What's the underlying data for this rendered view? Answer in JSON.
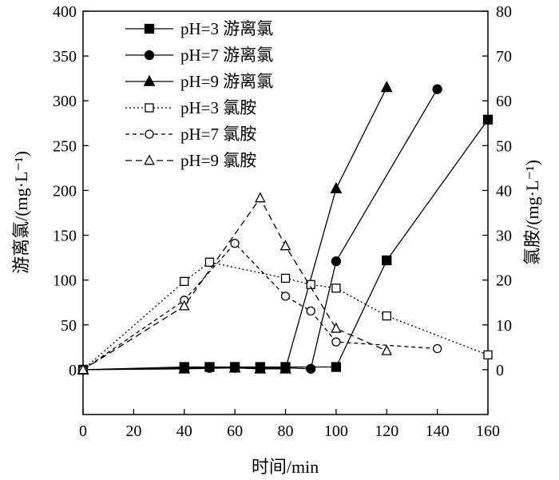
{
  "chart_data": {
    "type": "line",
    "x": [
      0,
      20,
      40,
      60,
      80,
      100,
      120,
      140,
      160
    ],
    "xlabel": "时间/min",
    "ylabel_left": "游离氯/(mg·L⁻¹)",
    "ylabel_right": "氯胺/(mg·L⁻¹)",
    "xlim": [
      0,
      160
    ],
    "ylim_left": [
      -50,
      400
    ],
    "ylim_right": [
      -10,
      80
    ],
    "xticks": [
      "0",
      "20",
      "40",
      "60",
      "80",
      "100",
      "120",
      "140",
      "160"
    ],
    "yticks_left": [
      "0",
      "50",
      "100",
      "150",
      "200",
      "250",
      "300",
      "350",
      "400"
    ],
    "yticks_right": [
      "0",
      "10",
      "20",
      "30",
      "40",
      "50",
      "60",
      "70",
      "80"
    ],
    "grid": false,
    "legend_position": "top-center",
    "series": [
      {
        "name": "pH=3 游离氯",
        "axis": "left",
        "line": "solid",
        "marker": "square",
        "filled": true,
        "x": [
          0,
          40,
          50,
          60,
          70,
          80,
          100,
          120,
          160
        ],
        "y": [
          0,
          3,
          3,
          3,
          3,
          3,
          3,
          122,
          279
        ]
      },
      {
        "name": "pH=7 游离氯",
        "axis": "left",
        "line": "solid",
        "marker": "circle",
        "filled": true,
        "x": [
          0,
          40,
          50,
          60,
          70,
          80,
          90,
          100,
          140
        ],
        "y": [
          0,
          2,
          2,
          2,
          2,
          2,
          1,
          121,
          313
        ]
      },
      {
        "name": "pH=9 游离氯",
        "axis": "left",
        "line": "solid",
        "marker": "triangle",
        "filled": true,
        "x": [
          0,
          40,
          60,
          70,
          80,
          100,
          120
        ],
        "y": [
          0,
          1,
          2,
          1,
          1,
          202,
          315
        ]
      },
      {
        "name": "pH=3 氯胺",
        "axis": "right",
        "line": "dotted",
        "marker": "square",
        "filled": false,
        "x": [
          0,
          40,
          50,
          80,
          90,
          100,
          120,
          160
        ],
        "y": [
          0,
          19.7,
          24,
          20.4,
          19,
          18.2,
          12,
          3.3
        ]
      },
      {
        "name": "pH=7 氯胺",
        "axis": "right",
        "line": "dashed-short",
        "marker": "circle",
        "filled": false,
        "x": [
          0,
          40,
          60,
          80,
          90,
          100,
          140
        ],
        "y": [
          0,
          15.5,
          28.2,
          16.4,
          13.1,
          6.2,
          4.7
        ]
      },
      {
        "name": "pH=9 氯胺",
        "axis": "right",
        "line": "dashed",
        "marker": "triangle",
        "filled": false,
        "x": [
          0,
          40,
          70,
          80,
          100,
          120
        ],
        "y": [
          0,
          14.2,
          38.3,
          27.6,
          9.2,
          4.2
        ]
      }
    ]
  }
}
